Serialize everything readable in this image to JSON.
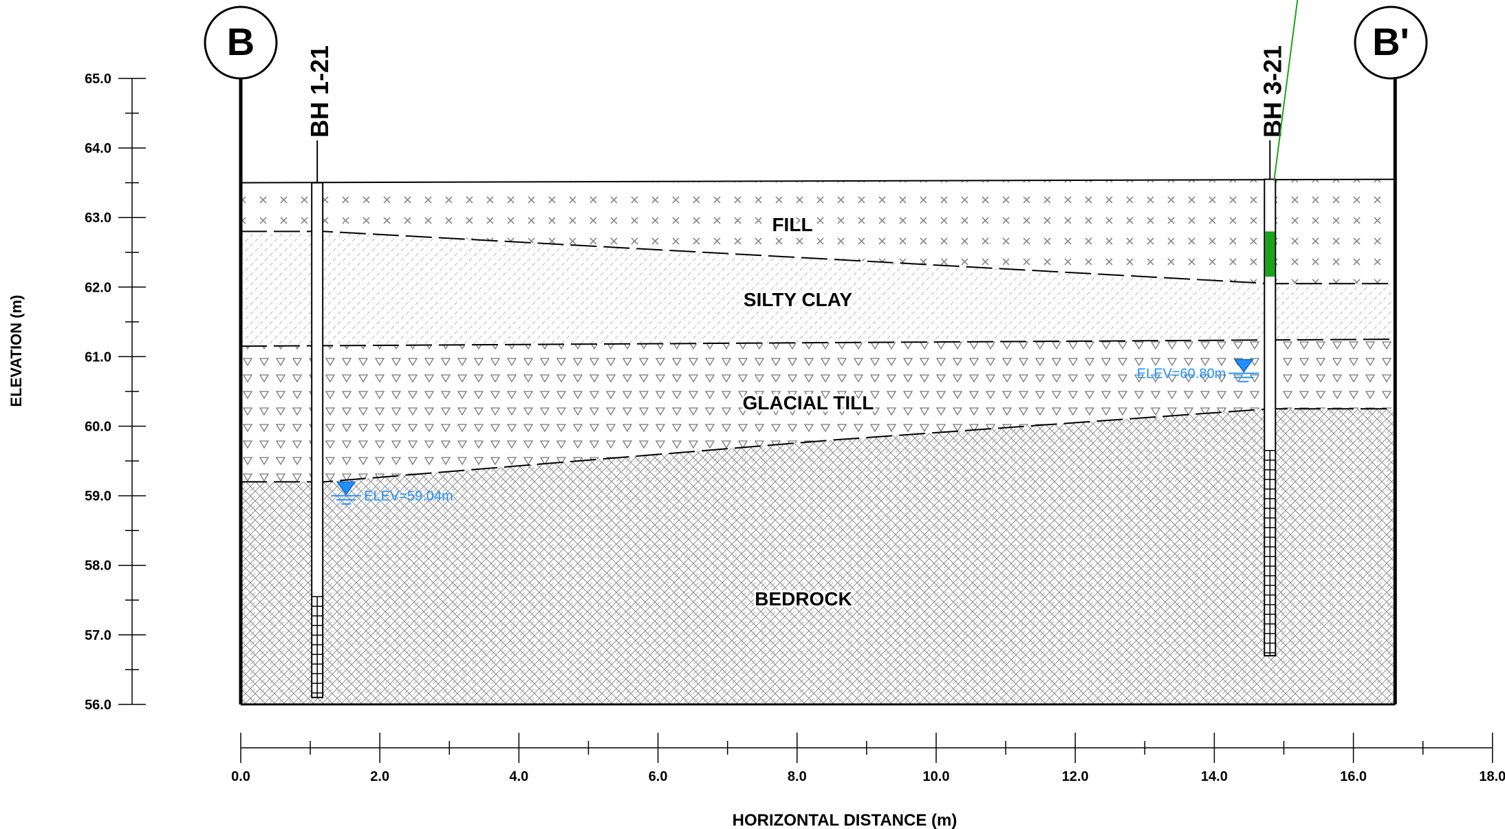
{
  "section": {
    "start_marker": "B",
    "end_marker": "B'"
  },
  "axes": {
    "y_label": "ELEVATION (m)",
    "x_label": "HORIZONTAL DISTANCE (m)",
    "y_ticks": [
      "65.0",
      "64.0",
      "63.0",
      "62.0",
      "61.0",
      "60.0",
      "59.0",
      "58.0",
      "57.0",
      "56.0"
    ],
    "x_ticks": [
      "0.0",
      "2.0",
      "4.0",
      "6.0",
      "8.0",
      "10.0",
      "12.0",
      "14.0",
      "16.0",
      "18.0"
    ]
  },
  "chart_data": {
    "type": "geological-cross-section",
    "x_range_m": [
      0,
      18
    ],
    "y_range_m": [
      56,
      65
    ],
    "section_extent_m": [
      0,
      16.6
    ],
    "bottom_elevation_m": 56.0,
    "ground_surface": [
      [
        0,
        63.5
      ],
      [
        16.6,
        63.55
      ]
    ],
    "layers": [
      {
        "name": "FILL",
        "top": [
          [
            0,
            63.5
          ],
          [
            16.6,
            63.55
          ]
        ],
        "bottom": [
          [
            0,
            62.8
          ],
          [
            1.2,
            62.8
          ],
          [
            8.5,
            62.4
          ],
          [
            14.8,
            62.05
          ],
          [
            16.6,
            62.05
          ]
        ],
        "pattern": "x-marks"
      },
      {
        "name": "SILTY CLAY",
        "top": [
          [
            0,
            62.8
          ],
          [
            1.2,
            62.8
          ],
          [
            8.5,
            62.4
          ],
          [
            14.8,
            62.05
          ],
          [
            16.6,
            62.05
          ]
        ],
        "bottom": [
          [
            0,
            61.15
          ],
          [
            16.6,
            61.25
          ]
        ],
        "pattern": "diagonal-hatch"
      },
      {
        "name": "GLACIAL TILL",
        "top": [
          [
            0,
            61.15
          ],
          [
            16.6,
            61.25
          ]
        ],
        "bottom": [
          [
            0,
            59.2
          ],
          [
            1.2,
            59.2
          ],
          [
            8.5,
            59.8
          ],
          [
            14.8,
            60.25
          ],
          [
            16.6,
            60.25
          ]
        ],
        "pattern": "triangles"
      },
      {
        "name": "BEDROCK",
        "top": [
          [
            0,
            59.2
          ],
          [
            1.2,
            59.2
          ],
          [
            8.5,
            59.8
          ],
          [
            14.8,
            60.25
          ],
          [
            16.6,
            60.25
          ]
        ],
        "bottom": [
          [
            0,
            56.0
          ],
          [
            16.6,
            56.0
          ]
        ],
        "pattern": "brick-hatch"
      }
    ],
    "boreholes": [
      {
        "name": "BH 1-21",
        "x": 1.1,
        "top": 63.5,
        "bottom": 56.1,
        "screen_top": 57.55,
        "water_level": {
          "label": "ELEV=59.04m",
          "elevation": 59.04
        }
      },
      {
        "name": "BH 3-21",
        "x": 14.8,
        "top": 63.55,
        "bottom": 56.7,
        "screen_top": 59.65,
        "sample_interval": [
          62.8,
          62.15
        ],
        "water_level": {
          "label": "ELEV=60.80m",
          "elevation": 60.8
        }
      }
    ]
  },
  "colors": {
    "line": "#000000",
    "water": "#1e90ff",
    "sample": "#1aa31a",
    "hatch": "#9a9a9a"
  }
}
